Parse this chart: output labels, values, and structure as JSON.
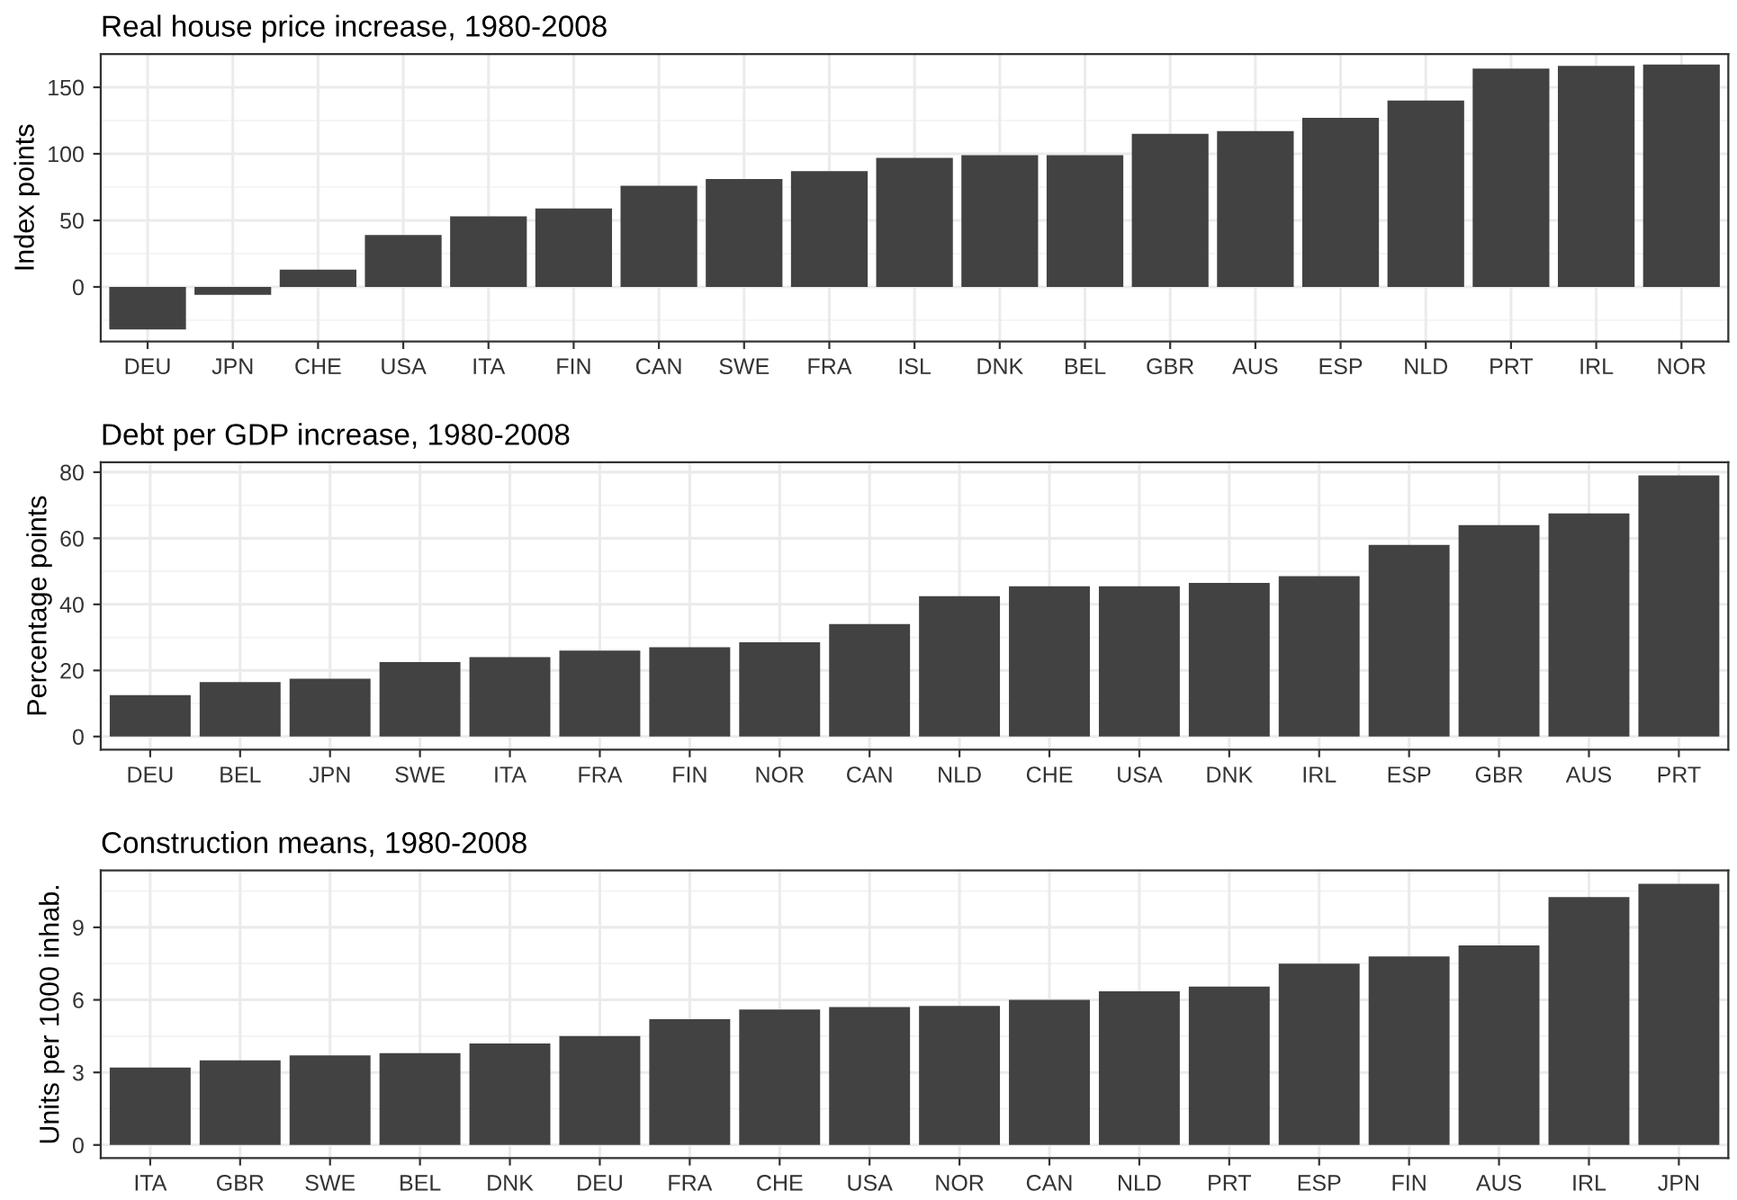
{
  "chart_data": [
    {
      "type": "bar",
      "title": "Real house price increase, 1980-2008",
      "ylabel": "Index points",
      "categories": [
        "DEU",
        "JPN",
        "CHE",
        "USA",
        "ITA",
        "FIN",
        "CAN",
        "SWE",
        "FRA",
        "ISL",
        "DNK",
        "BEL",
        "GBR",
        "AUS",
        "ESP",
        "NLD",
        "PRT",
        "IRL",
        "NOR"
      ],
      "values": [
        -32,
        -6,
        13,
        39,
        53,
        59,
        76,
        81,
        87,
        97,
        99,
        99,
        115,
        117,
        127,
        140,
        164,
        166,
        167
      ],
      "color": "#424242",
      "ylim": [
        -41,
        175
      ],
      "yticks": [
        0,
        50,
        100,
        150
      ],
      "grid": true
    },
    {
      "type": "bar",
      "title": "Debt per GDP increase, 1980-2008",
      "ylabel": "Percentage points",
      "categories": [
        "DEU",
        "BEL",
        "JPN",
        "SWE",
        "ITA",
        "FRA",
        "FIN",
        "NOR",
        "CAN",
        "NLD",
        "CHE",
        "USA",
        "DNK",
        "IRL",
        "ESP",
        "GBR",
        "AUS",
        "PRT"
      ],
      "values": [
        12.5,
        16.5,
        17.5,
        22.5,
        24,
        26,
        27,
        28.5,
        34,
        42.5,
        45.5,
        45.5,
        46.5,
        48.5,
        58,
        64,
        67.5,
        79
      ],
      "color": "#424242",
      "ylim": [
        -4,
        83
      ],
      "yticks": [
        0,
        20,
        40,
        60,
        80
      ],
      "grid": true
    },
    {
      "type": "bar",
      "title": "Construction means, 1980-2008",
      "ylabel": "Units per 1000 inhab.",
      "categories": [
        "ITA",
        "GBR",
        "SWE",
        "BEL",
        "DNK",
        "DEU",
        "FRA",
        "CHE",
        "USA",
        "NOR",
        "CAN",
        "NLD",
        "PRT",
        "ESP",
        "FIN",
        "AUS",
        "IRL",
        "JPN"
      ],
      "values": [
        3.2,
        3.5,
        3.7,
        3.8,
        4.2,
        4.5,
        5.2,
        5.6,
        5.7,
        5.75,
        6.0,
        6.35,
        6.55,
        7.5,
        7.8,
        8.25,
        10.25,
        10.8
      ],
      "color": "#424242",
      "ylim": [
        -0.54,
        11.35
      ],
      "yticks": [
        0,
        3,
        6,
        9
      ],
      "grid": true
    }
  ]
}
